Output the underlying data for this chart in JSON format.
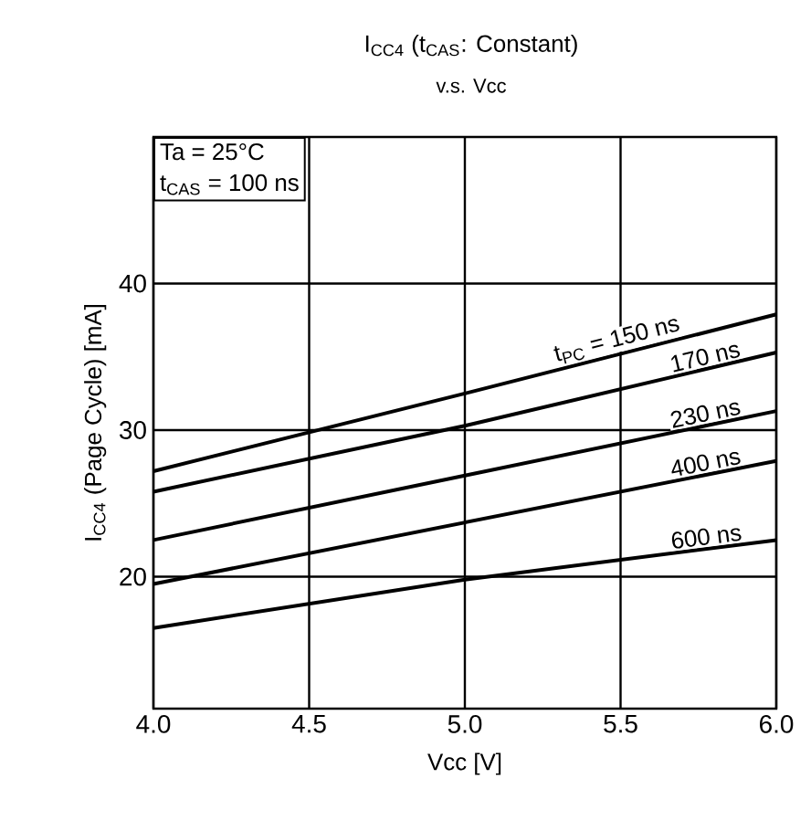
{
  "chart_data": {
    "type": "line",
    "title": "I$_{CC4}$ (t$_{CAS}$: Constant)",
    "subtitle": "v.s. Vcc",
    "xlabel": "Vcc [V]",
    "ylabel": "I$_{CC4}$ (Page Cycle) [mA]",
    "annotations": [
      "Ta = 25°C",
      "t$_{CAS}$ = 100 ns"
    ],
    "x": [
      4.0,
      5.0,
      6.0
    ],
    "series": [
      {
        "name": "t$_{PC}$ = 150 ns",
        "color": "#000000",
        "values": [
          27.2,
          32.5,
          37.9
        ]
      },
      {
        "name": "170 ns",
        "color": "#000000",
        "values": [
          25.8,
          30.3,
          35.3
        ]
      },
      {
        "name": "230 ns",
        "color": "#000000",
        "values": [
          22.5,
          26.9,
          31.3
        ]
      },
      {
        "name": "400 ns",
        "color": "#000000",
        "values": [
          19.5,
          23.7,
          27.9
        ]
      },
      {
        "name": "600 ns",
        "color": "#000000",
        "values": [
          16.5,
          19.8,
          22.5
        ]
      }
    ],
    "xlim": [
      4.0,
      6.0
    ],
    "ylim": [
      11,
      50
    ],
    "xticks": [
      {
        "value": 4.0,
        "label": "4.0"
      },
      {
        "value": 4.5,
        "label": "4.5"
      },
      {
        "value": 5.0,
        "label": "5.0"
      },
      {
        "value": 5.5,
        "label": "5.5"
      },
      {
        "value": 6.0,
        "label": "6.0"
      }
    ],
    "yticks": [
      20,
      30,
      40
    ],
    "grid": true
  }
}
